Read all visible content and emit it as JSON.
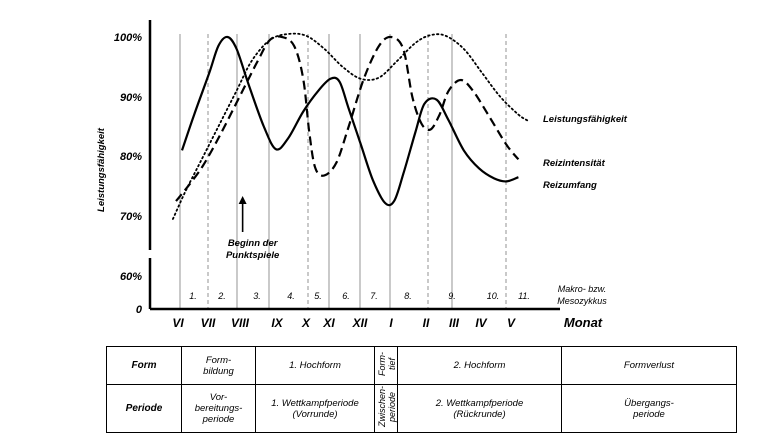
{
  "chart_data": {
    "type": "line",
    "ylabel": "Leistungsfähigkeit",
    "y_ticks": [
      "100%",
      "90%",
      "80%",
      "70%",
      "60%",
      "0"
    ],
    "months": [
      "VI",
      "VII",
      "VIII",
      "IX",
      "X",
      "XI",
      "XII",
      "I",
      "II",
      "III",
      "IV",
      "V"
    ],
    "month_axis_label": "Monat",
    "mesocycles": [
      "1.",
      "2.",
      "3.",
      "4.",
      "5.",
      "6.",
      "7.",
      "8.",
      "9.",
      "10.",
      "11."
    ],
    "mesocycle_label_line1": "Makro- bzw.",
    "mesocycle_label_line2": "Mesozykkus",
    "annotation_line1": "Beginn der",
    "annotation_line2": "Punktspiele",
    "annotation_month_x": 2.1,
    "series": [
      {
        "name": "Leistungsfähigkeit",
        "style": "dotted",
        "points": [
          [
            -0.2,
            69.5
          ],
          [
            0.2,
            74
          ],
          [
            0.7,
            79
          ],
          [
            1.3,
            85
          ],
          [
            1.9,
            91
          ],
          [
            2.4,
            96
          ],
          [
            3.0,
            99.5
          ],
          [
            3.6,
            100.5
          ],
          [
            4.2,
            100.2
          ],
          [
            4.8,
            98
          ],
          [
            5.4,
            95
          ],
          [
            6.0,
            93
          ],
          [
            6.6,
            93.2
          ],
          [
            7.2,
            96
          ],
          [
            7.8,
            99
          ],
          [
            8.3,
            100.3
          ],
          [
            8.8,
            100.2
          ],
          [
            9.4,
            98
          ],
          [
            10.0,
            94
          ],
          [
            10.6,
            90
          ],
          [
            11.2,
            87
          ],
          [
            11.5,
            86
          ]
        ]
      },
      {
        "name": "Reizintensität",
        "style": "dashed",
        "points": [
          [
            -0.1,
            72.5
          ],
          [
            0.3,
            75
          ],
          [
            0.8,
            78.5
          ],
          [
            1.4,
            84
          ],
          [
            2.0,
            90
          ],
          [
            2.6,
            96
          ],
          [
            3.0,
            99.5
          ],
          [
            3.4,
            100
          ],
          [
            3.8,
            98.5
          ],
          [
            4.1,
            93
          ],
          [
            4.3,
            84
          ],
          [
            4.5,
            78
          ],
          [
            4.8,
            76.8
          ],
          [
            5.2,
            79
          ],
          [
            5.6,
            85
          ],
          [
            6.1,
            93
          ],
          [
            6.6,
            98.5
          ],
          [
            7.0,
            100
          ],
          [
            7.4,
            98
          ],
          [
            7.7,
            90
          ],
          [
            8.0,
            85.5
          ],
          [
            8.3,
            84.5
          ],
          [
            8.6,
            87
          ],
          [
            8.9,
            91
          ],
          [
            9.3,
            92.8
          ],
          [
            9.7,
            91
          ],
          [
            10.2,
            87
          ],
          [
            10.8,
            82
          ],
          [
            11.2,
            79.5
          ]
        ]
      },
      {
        "name": "Reizumfang",
        "style": "solid",
        "points": [
          [
            0.1,
            81
          ],
          [
            0.5,
            87
          ],
          [
            1.0,
            94
          ],
          [
            1.3,
            98.5
          ],
          [
            1.6,
            100
          ],
          [
            1.9,
            98
          ],
          [
            2.3,
            92
          ],
          [
            2.8,
            85
          ],
          [
            3.2,
            81.2
          ],
          [
            3.6,
            83
          ],
          [
            4.1,
            87.5
          ],
          [
            4.6,
            91
          ],
          [
            5.0,
            93
          ],
          [
            5.3,
            92.5
          ],
          [
            5.6,
            88
          ],
          [
            6.0,
            82
          ],
          [
            6.4,
            76
          ],
          [
            6.8,
            72.2
          ],
          [
            7.1,
            72.5
          ],
          [
            7.4,
            77
          ],
          [
            7.8,
            84
          ],
          [
            8.1,
            88.8
          ],
          [
            8.5,
            89.5
          ],
          [
            8.9,
            86
          ],
          [
            9.4,
            81
          ],
          [
            9.9,
            78
          ],
          [
            10.4,
            76.3
          ],
          [
            10.8,
            75.8
          ],
          [
            11.2,
            76.5
          ]
        ]
      }
    ]
  },
  "table": {
    "rows": [
      {
        "head": "Form",
        "cells": [
          "Form-\nbildung",
          "1. Hochform",
          "Form-\ntief",
          "2. Hochform",
          "Formverlust"
        ]
      },
      {
        "head": "Periode",
        "cells": [
          "Vor-\nbereitungs-\nperiode",
          "1. Wettkampfperiode\n(Vorrunde)",
          "Zwischen-\nperiode",
          "2. Wettkampfperiode\n(Rückrunde)",
          "Übergangs-\nperiode"
        ]
      }
    ]
  }
}
